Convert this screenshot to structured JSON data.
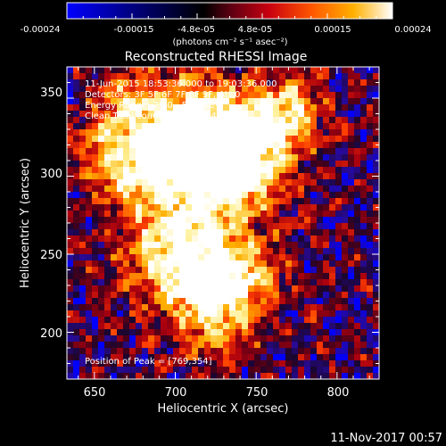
{
  "colorbar": {
    "tick_labels": [
      "-0.00024",
      "-0.00015",
      "-4.8e-05",
      "4.8e-05",
      "0.00015",
      "0.00024"
    ],
    "unit_label": "(photons cm⁻² s⁻¹ asec⁻²)",
    "range": [
      -0.00024,
      0.00024
    ],
    "colormap": [
      "#0000ff",
      "#000080",
      "#000000",
      "#5a0012",
      "#c80010",
      "#ff5500",
      "#ffb000",
      "#ffffff"
    ]
  },
  "plot": {
    "title": "Reconstructed RHESSI Image",
    "xlabel": "Heliocentric X (arcsec)",
    "ylabel": "Heliocentric Y (arcsec)",
    "xlim": [
      633,
      826
    ],
    "ylim": [
      170,
      370
    ],
    "x_ticks": [
      650,
      700,
      750,
      800
    ],
    "y_ticks": [
      200,
      250,
      300,
      350
    ],
    "annotations": [
      "11-Jun-2015 18:53:36.000 to 19:03:36.000",
      "Detectors: 3F 5F 6F 7F 8F 9F, Att 0",
      "Energy Range: 25.0 - 50.0 keV",
      "Clean     Total counts: 1.01E+04"
    ],
    "peak_label": "Position of Peak = [769,354]",
    "peak": [
      769,
      354
    ]
  },
  "footer": {
    "timestamp": "11-Nov-2017 00:57"
  }
}
